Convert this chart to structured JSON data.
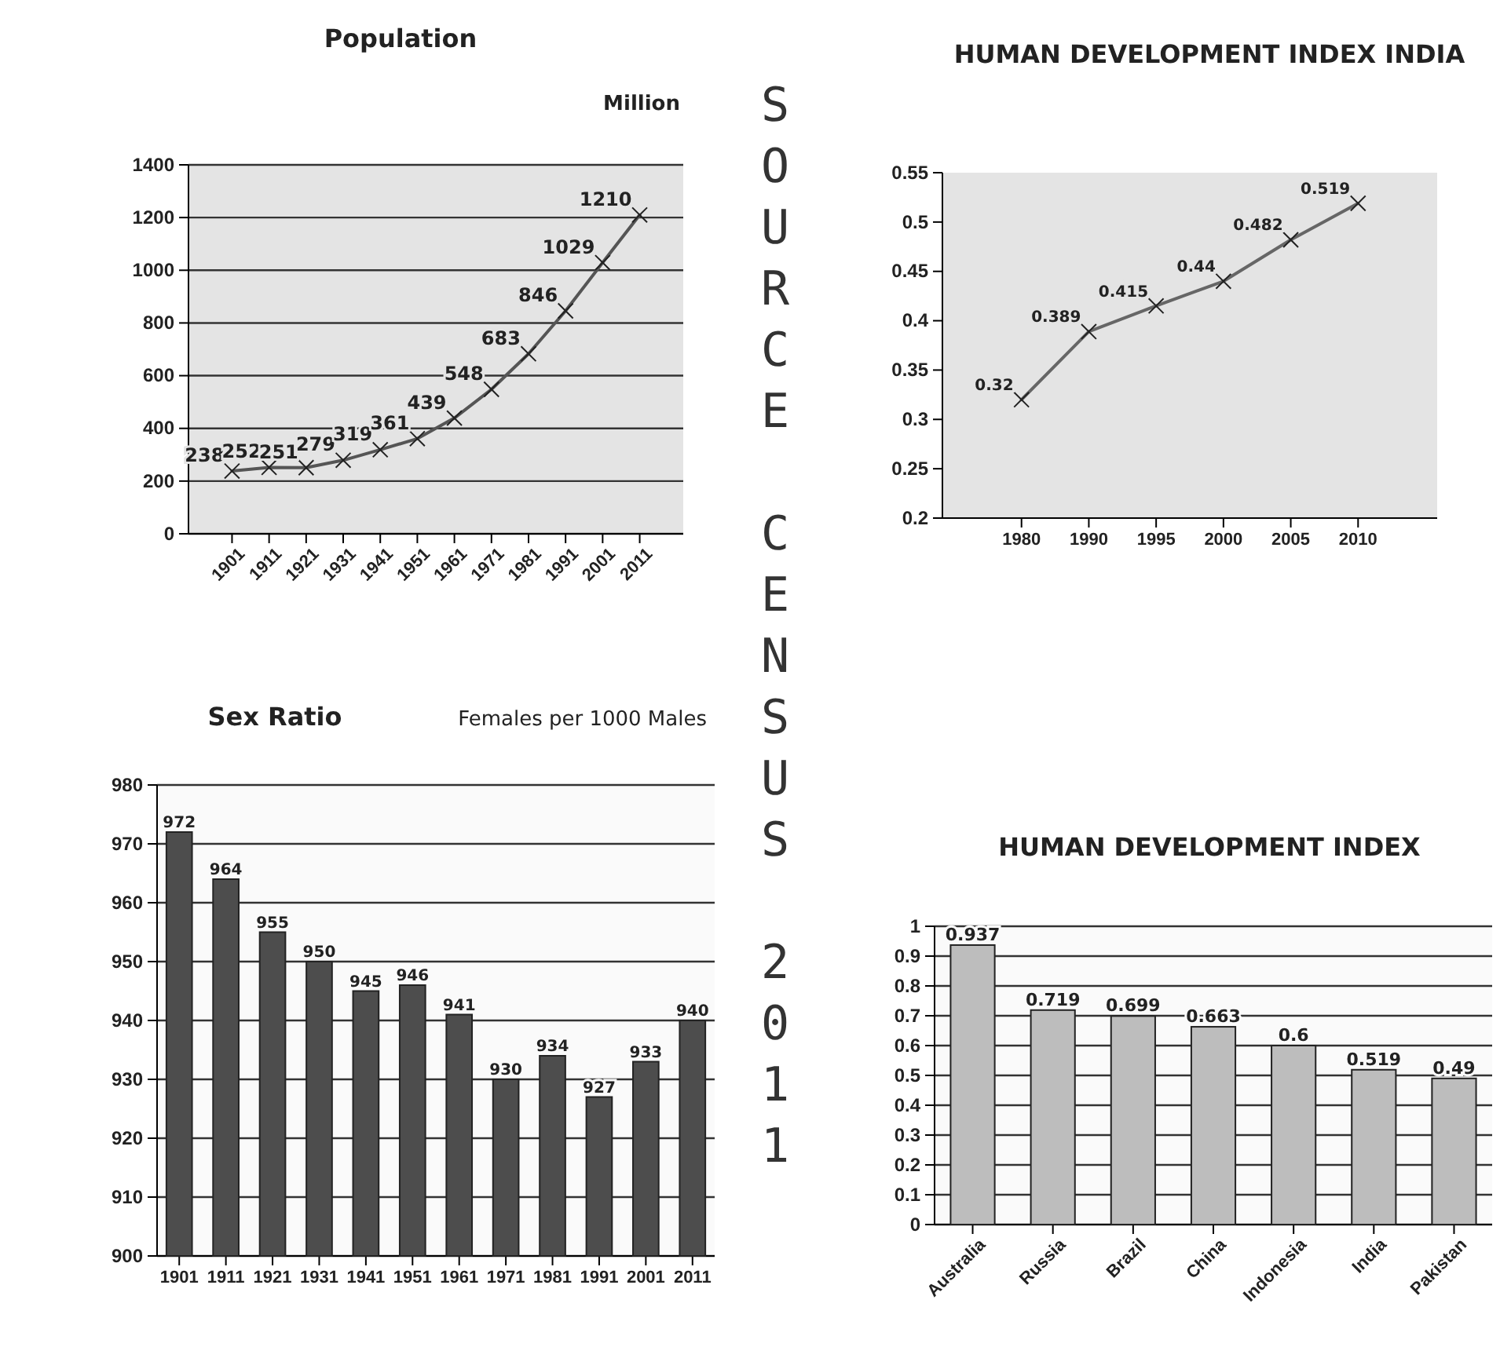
{
  "chart_data": [
    {
      "type": "line",
      "title": "Population",
      "ylabel": "Million",
      "categories": [
        "1901",
        "1911",
        "1921",
        "1931",
        "1941",
        "1951",
        "1961",
        "1971",
        "1981",
        "1991",
        "2001",
        "2011"
      ],
      "series": [
        {
          "color": "#555555",
          "values": [
            238,
            252,
            251,
            279,
            319,
            361,
            439,
            548,
            683,
            846,
            1029,
            1210
          ]
        }
      ],
      "ylim": [
        0,
        1400
      ],
      "yticks": [
        0,
        200,
        400,
        600,
        800,
        1000,
        1200,
        1400
      ],
      "grid": "y",
      "marker": "cross",
      "data_labels": true,
      "annotations": [
        "SOURCE CENSUS 2011"
      ]
    },
    {
      "type": "line",
      "title": "HUMAN DEVELOPMENT INDEX INDIA",
      "categories": [
        "1980",
        "1990",
        "1995",
        "2000",
        "2005",
        "2010"
      ],
      "series": [
        {
          "color": "#666666",
          "values": [
            0.32,
            0.389,
            0.415,
            0.44,
            0.482,
            0.519
          ]
        }
      ],
      "ylim": [
        0.2,
        0.55
      ],
      "yticks": [
        0.2,
        0.25,
        0.3,
        0.35,
        0.4,
        0.45,
        0.5,
        0.55
      ],
      "marker": "cross",
      "data_labels": true
    },
    {
      "type": "bar",
      "title": "Sex Ratio",
      "subtitle": "Females per 1000 Males",
      "categories": [
        "1901",
        "1911",
        "1921",
        "1931",
        "1941",
        "1951",
        "1961",
        "1971",
        "1981",
        "1991",
        "2001",
        "2011"
      ],
      "series": [
        {
          "color": "#4d4d4d",
          "values": [
            972,
            964,
            955,
            950,
            945,
            946,
            941,
            930,
            934,
            927,
            933,
            940
          ]
        }
      ],
      "ylim": [
        900,
        980
      ],
      "yticks": [
        900,
        910,
        920,
        930,
        940,
        950,
        960,
        970,
        980
      ],
      "grid": "y",
      "data_labels": true
    },
    {
      "type": "bar",
      "title": "HUMAN DEVELOPMENT INDEX",
      "categories": [
        "Australia",
        "Russia",
        "Brazil",
        "China",
        "Indonesia",
        "India",
        "Pakistan"
      ],
      "series": [
        {
          "color": "#bdbdbd",
          "values": [
            0.937,
            0.719,
            0.699,
            0.663,
            0.6,
            0.519,
            0.49
          ]
        }
      ],
      "ylim": [
        0,
        1
      ],
      "yticks": [
        0,
        0.1,
        0.2,
        0.3,
        0.4,
        0.5,
        0.6,
        0.7,
        0.8,
        0.9,
        1
      ],
      "grid": "y",
      "data_labels": true
    }
  ]
}
